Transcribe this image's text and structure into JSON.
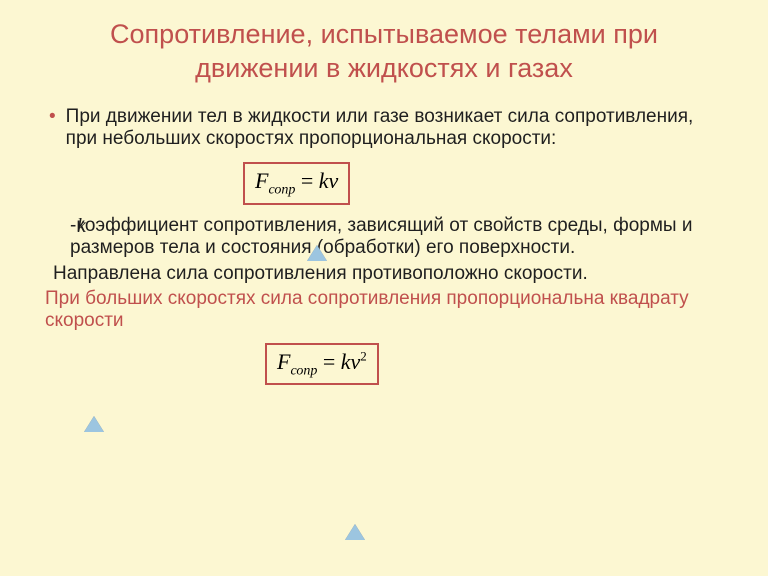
{
  "title": "Сопротивление, испытываемое телами при движении в жидкостях и газах",
  "bullet": {
    "text": "При движении тел в жидкости или газе возникает сила сопротивления, при небольших скоростях пропорциональная скорости:"
  },
  "formula1": {
    "F": "F",
    "sub": "сопр",
    "eq": " = ",
    "k": "k",
    "v": "v"
  },
  "k_symbol": "k",
  "coeff_text_lead": " -",
  "coeff_text": "коэффициент сопротивления, зависящий от свойств среды, формы и размеров тела и состояния (обработки) его поверхности.",
  "direction_text": "Направлена сила сопротивления противоположно скорости.",
  "highspeed_text": "При больших скоростях сила сопротивления пропорциональна квадрату скорости",
  "formula2": {
    "F": "F",
    "sub": "сопр",
    "eq": " = ",
    "k": "k",
    "v": "v",
    "sup": "2"
  },
  "colors": {
    "background": "#fcf7d2",
    "accent": "#c0504d",
    "text": "#1f1f1f",
    "triangle_fill": "#9cc5e0"
  }
}
